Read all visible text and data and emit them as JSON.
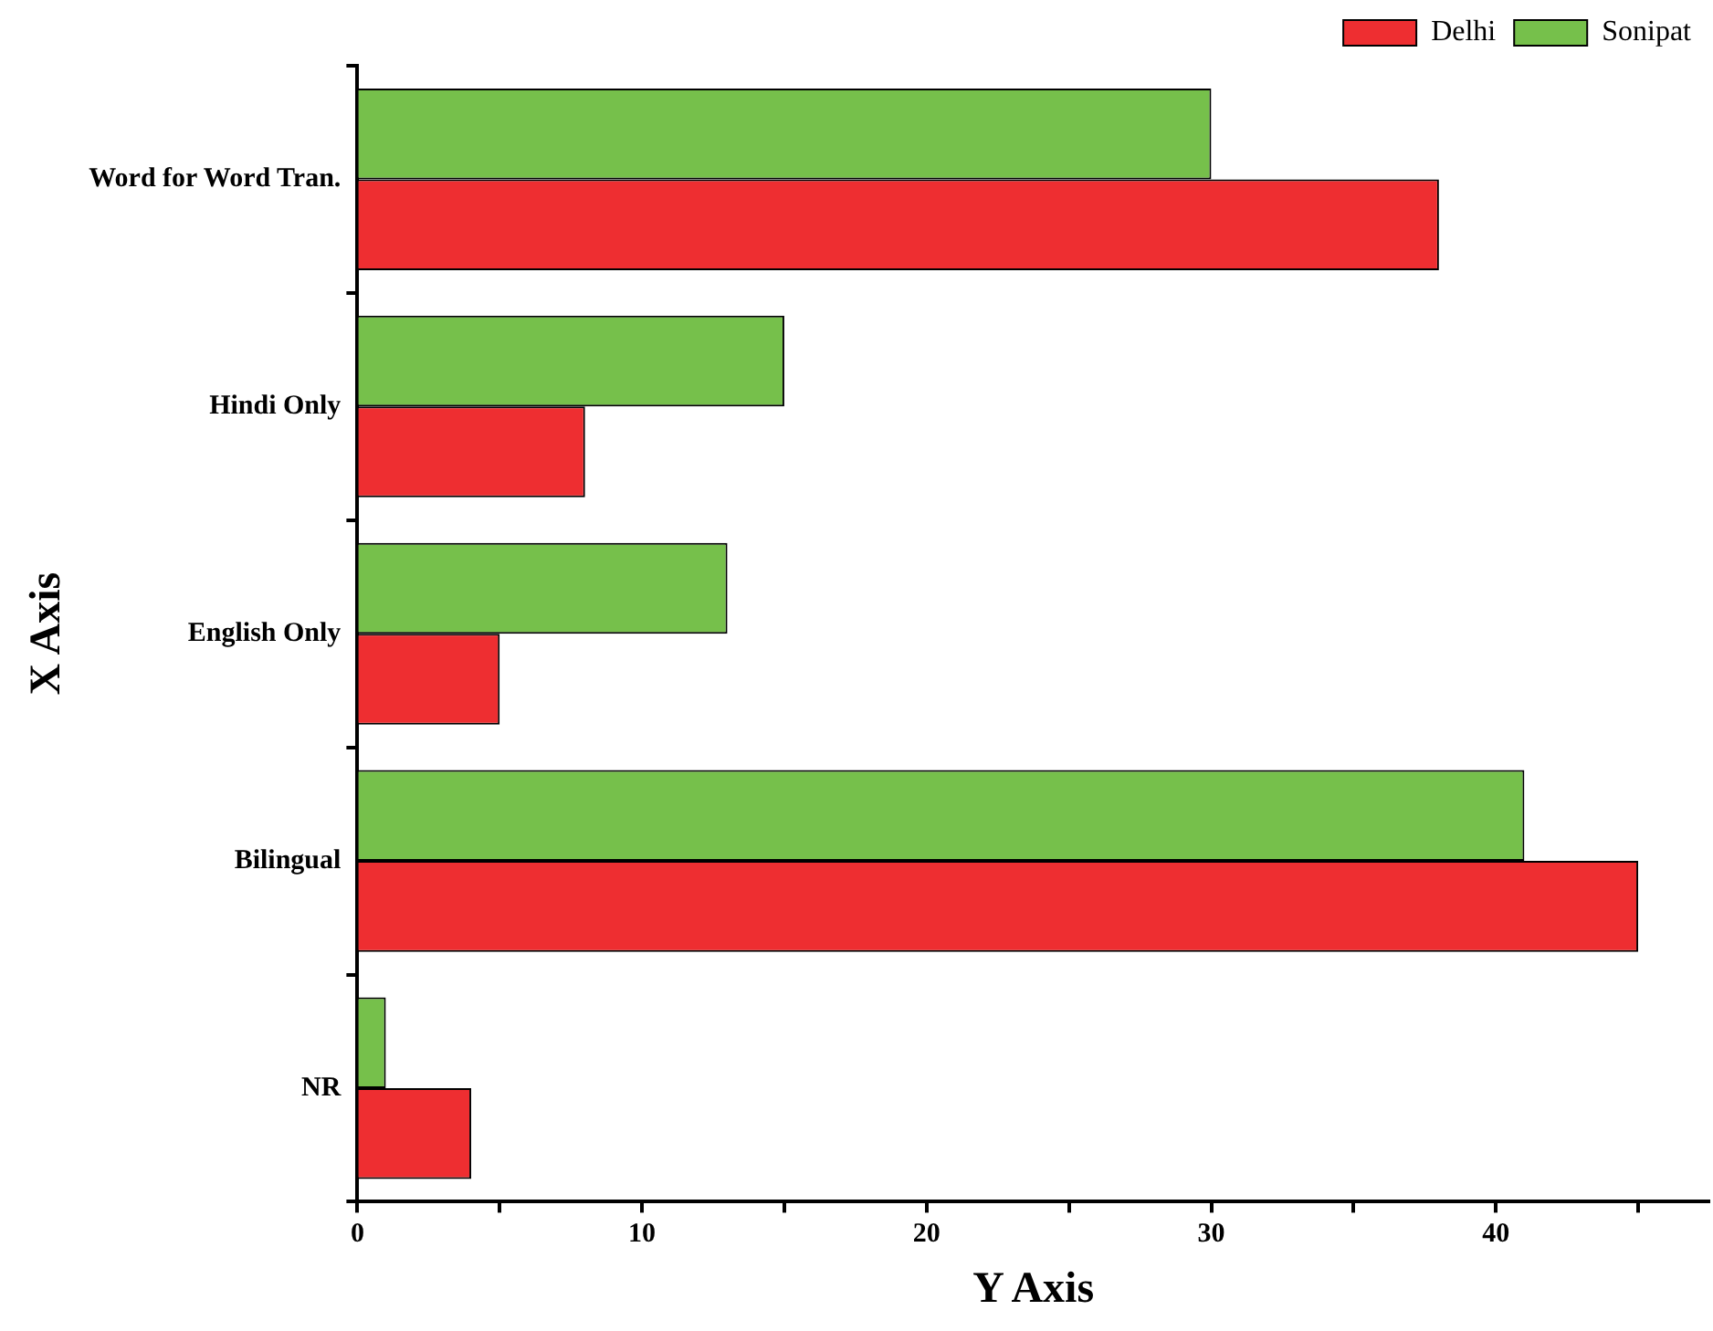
{
  "chart_data": {
    "type": "bar",
    "orientation": "horizontal",
    "xlabel": "Y Axis",
    "ylabel": "X Axis",
    "categories": [
      "Word for Word Tran.",
      "Hindi Only",
      "English Only",
      "Bilingual",
      "NR"
    ],
    "series": [
      {
        "name": "Delhi",
        "color": "#ee2e31",
        "values": [
          38,
          8,
          5,
          45,
          4
        ]
      },
      {
        "name": "Sonipat",
        "color": "#76c04b",
        "values": [
          30,
          15,
          13,
          41,
          1
        ]
      }
    ],
    "xlim": [
      0,
      47.5
    ],
    "xticks": [
      0,
      {
        "value": 5,
        "label": null
      },
      10,
      {
        "value": 15,
        "label": null
      },
      20,
      {
        "value": 25,
        "label": null
      },
      30,
      {
        "value": 35,
        "label": null
      },
      40,
      {
        "value": 45,
        "label": null
      }
    ],
    "grid": false,
    "legend": "top right"
  }
}
